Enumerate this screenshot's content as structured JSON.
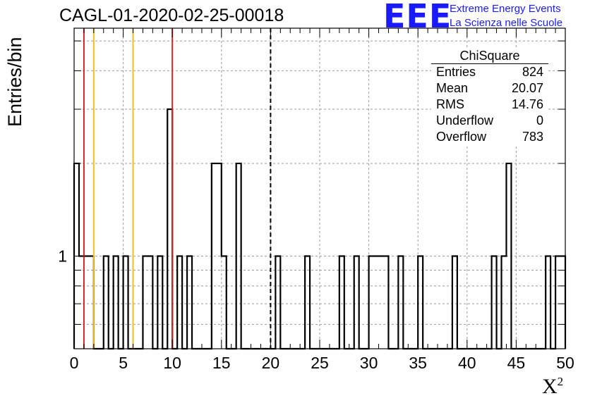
{
  "header": {
    "title": "CAGL-01-2020-02-25-00018",
    "logo_text": "EEE",
    "logo_line1": "Extreme Energy Events",
    "logo_line2": "La Scienza nelle Scuole"
  },
  "stats_box": {
    "title": "ChiSquare",
    "rows": [
      {
        "label": "Entries",
        "value": "824"
      },
      {
        "label": "Mean",
        "value": "20.07"
      },
      {
        "label": "RMS",
        "value": "14.76"
      },
      {
        "label": "Underflow",
        "value": "0"
      },
      {
        "label": "Overflow",
        "value": "783"
      }
    ]
  },
  "chart_data": {
    "type": "histogram",
    "xlabel": "X",
    "xlabel_sup": "2",
    "ylabel": "Entries/bin",
    "xlim": [
      0,
      50
    ],
    "ylim": [
      0.5,
      5.5
    ],
    "y_scale": "log",
    "y_tick_labels": [
      "1"
    ],
    "x_tick_labels": [
      "0",
      "5",
      "10",
      "15",
      "20",
      "25",
      "30",
      "35",
      "40",
      "45",
      "50"
    ],
    "grid": true,
    "bin_width": 0.5,
    "bins": [
      {
        "x": 0,
        "y": 2
      },
      {
        "x": 0.5,
        "y": 1
      },
      {
        "x": 1,
        "y": 1
      },
      {
        "x": 1.5,
        "y": 1
      },
      {
        "x": 3,
        "y": 1
      },
      {
        "x": 4,
        "y": 1
      },
      {
        "x": 5,
        "y": 1
      },
      {
        "x": 7,
        "y": 1
      },
      {
        "x": 7.5,
        "y": 1
      },
      {
        "x": 8.5,
        "y": 1
      },
      {
        "x": 9.5,
        "y": 3
      },
      {
        "x": 10.5,
        "y": 1
      },
      {
        "x": 11.5,
        "y": 1
      },
      {
        "x": 14,
        "y": 2
      },
      {
        "x": 14.5,
        "y": 2
      },
      {
        "x": 15,
        "y": 1
      },
      {
        "x": 16.5,
        "y": 2
      },
      {
        "x": 20.5,
        "y": 1
      },
      {
        "x": 23.5,
        "y": 1
      },
      {
        "x": 27,
        "y": 1
      },
      {
        "x": 28.5,
        "y": 1
      },
      {
        "x": 30,
        "y": 1
      },
      {
        "x": 30.5,
        "y": 1
      },
      {
        "x": 31,
        "y": 1
      },
      {
        "x": 31.5,
        "y": 1
      },
      {
        "x": 33,
        "y": 1
      },
      {
        "x": 35,
        "y": 1
      },
      {
        "x": 38.5,
        "y": 1
      },
      {
        "x": 42.5,
        "y": 1
      },
      {
        "x": 43.5,
        "y": 1
      },
      {
        "x": 44,
        "y": 2
      },
      {
        "x": 48,
        "y": 1
      },
      {
        "x": 49,
        "y": 1
      },
      {
        "x": 49.5,
        "y": 1
      }
    ],
    "vertical_lines": [
      {
        "x": 1,
        "color": "#dd2222",
        "style": "solid"
      },
      {
        "x": 2,
        "color": "#f0c020",
        "style": "solid"
      },
      {
        "x": 6,
        "color": "#f0c020",
        "style": "solid"
      },
      {
        "x": 10,
        "color": "#dd2222",
        "style": "solid"
      },
      {
        "x": 20,
        "color": "#000000",
        "style": "dashed"
      }
    ]
  }
}
